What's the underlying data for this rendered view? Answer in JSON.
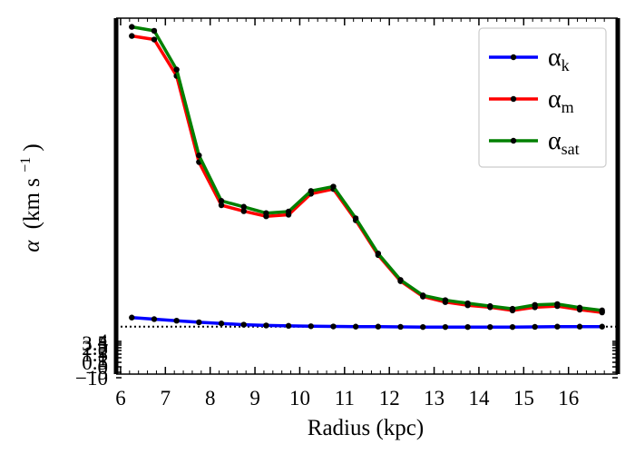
{
  "chart_data": {
    "type": "line",
    "xlabel": "Radius (kpc)",
    "ylabel_symbol": "α",
    "ylabel_units": "(km s",
    "ylabel_exp": "−1",
    "ylabel_close": ")",
    "xlim": [
      5.9,
      17.1
    ],
    "ylim": [
      -12,
      78
    ],
    "xticks": [
      6,
      7,
      8,
      9,
      10,
      11,
      12,
      13,
      14,
      15,
      16
    ],
    "yticks_overlapping": [
      "−10",
      "−5",
      "0",
      "0.5",
      "1",
      "1.5",
      "2",
      "2.5",
      "3",
      "3.5",
      "4"
    ],
    "hline": 0,
    "grid": false,
    "legend_position": "top-right",
    "x": [
      6.25,
      6.75,
      7.25,
      7.75,
      8.25,
      8.75,
      9.25,
      9.75,
      10.25,
      10.75,
      11.25,
      11.75,
      12.25,
      12.75,
      13.25,
      13.75,
      14.25,
      14.75,
      15.25,
      15.75,
      16.25,
      16.75
    ],
    "series": [
      {
        "name_base": "α",
        "name_sub": "k",
        "color": "#0000ff",
        "values": [
          2.3,
          1.9,
          1.5,
          1.1,
          0.8,
          0.5,
          0.3,
          0.2,
          0.1,
          0.05,
          0.0,
          0.0,
          -0.05,
          -0.1,
          -0.1,
          -0.1,
          -0.1,
          -0.1,
          -0.05,
          0.0,
          0.0,
          0.0
        ]
      },
      {
        "name_base": "α",
        "name_sub": "m",
        "color": "#ff0000",
        "values": [
          73.5,
          72.6,
          63.4,
          41.6,
          30.7,
          29.2,
          27.9,
          28.3,
          33.6,
          34.8,
          26.9,
          18.1,
          11.5,
          7.6,
          6.2,
          5.4,
          4.9,
          4.1,
          4.9,
          5.2,
          4.3,
          3.6
        ]
      },
      {
        "name_base": "α",
        "name_sub": "sat",
        "color": "#008000",
        "values": [
          75.8,
          74.8,
          65.0,
          43.3,
          31.8,
          30.3,
          28.7,
          29.1,
          34.3,
          35.4,
          27.4,
          18.5,
          11.8,
          7.9,
          6.7,
          5.9,
          5.2,
          4.5,
          5.5,
          5.7,
          4.8,
          4.1
        ]
      }
    ]
  }
}
